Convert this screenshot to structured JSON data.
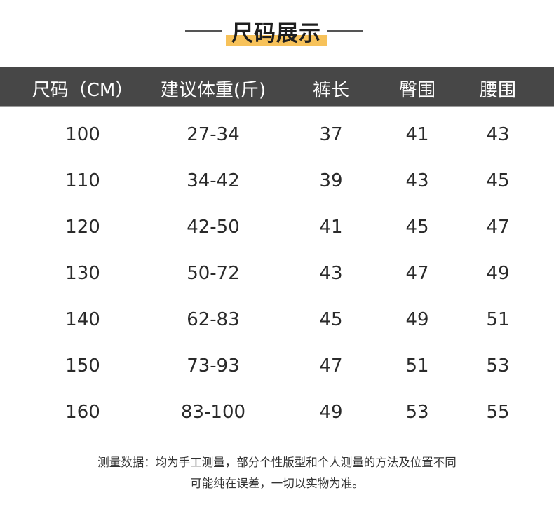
{
  "title": "尺码展示",
  "colors": {
    "header_bg": "#474747",
    "highlight": "#f7c25a"
  },
  "table": {
    "headers": [
      "尺码（CM）",
      "建议体重(斤)",
      "裤长",
      "臀围",
      "腰围"
    ],
    "rows": [
      [
        "100",
        "27-34",
        "37",
        "41",
        "43"
      ],
      [
        "110",
        "34-42",
        "39",
        "43",
        "45"
      ],
      [
        "120",
        "42-50",
        "41",
        "45",
        "47"
      ],
      [
        "130",
        "50-72",
        "43",
        "47",
        "49"
      ],
      [
        "140",
        "62-83",
        "45",
        "49",
        "51"
      ],
      [
        "150",
        "73-93",
        "47",
        "51",
        "53"
      ],
      [
        "160",
        "83-100",
        "49",
        "53",
        "55"
      ]
    ]
  },
  "note": {
    "line1": "测量数据：均为手工测量，部分个性版型和个人测量的方法及位置不同",
    "line2": "可能纯在误差，一切以实物为准。"
  }
}
